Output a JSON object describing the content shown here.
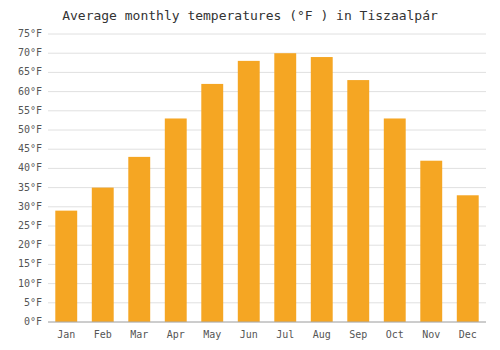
{
  "chart_data": {
    "type": "bar",
    "title": "Average monthly temperatures (°F ) in Tiszaalpár",
    "categories": [
      "Jan",
      "Feb",
      "Mar",
      "Apr",
      "May",
      "Jun",
      "Jul",
      "Aug",
      "Sep",
      "Oct",
      "Nov",
      "Dec"
    ],
    "values": [
      29,
      35,
      43,
      53,
      62,
      68,
      70,
      69,
      63,
      53,
      42,
      33
    ],
    "color": "#F5A623",
    "ylim": [
      0,
      75
    ],
    "yticks": [
      {
        "value": 0,
        "label": "0°F"
      },
      {
        "value": 5,
        "label": "5°F"
      },
      {
        "value": 10,
        "label": "10°F"
      },
      {
        "value": 15,
        "label": "15°F"
      },
      {
        "value": 20,
        "label": "20°F"
      },
      {
        "value": 25,
        "label": "25°F"
      },
      {
        "value": 30,
        "label": "30°F"
      },
      {
        "value": 35,
        "label": "35°F"
      },
      {
        "value": 40,
        "label": "40°F"
      },
      {
        "value": 45,
        "label": "45°F"
      },
      {
        "value": 50,
        "label": "50°F"
      },
      {
        "value": 55,
        "label": "55°F"
      },
      {
        "value": 60,
        "label": "60°F"
      },
      {
        "value": 65,
        "label": "65°F"
      },
      {
        "value": 70,
        "label": "70°F"
      },
      {
        "value": 75,
        "label": "75°F"
      }
    ],
    "grid": true
  }
}
